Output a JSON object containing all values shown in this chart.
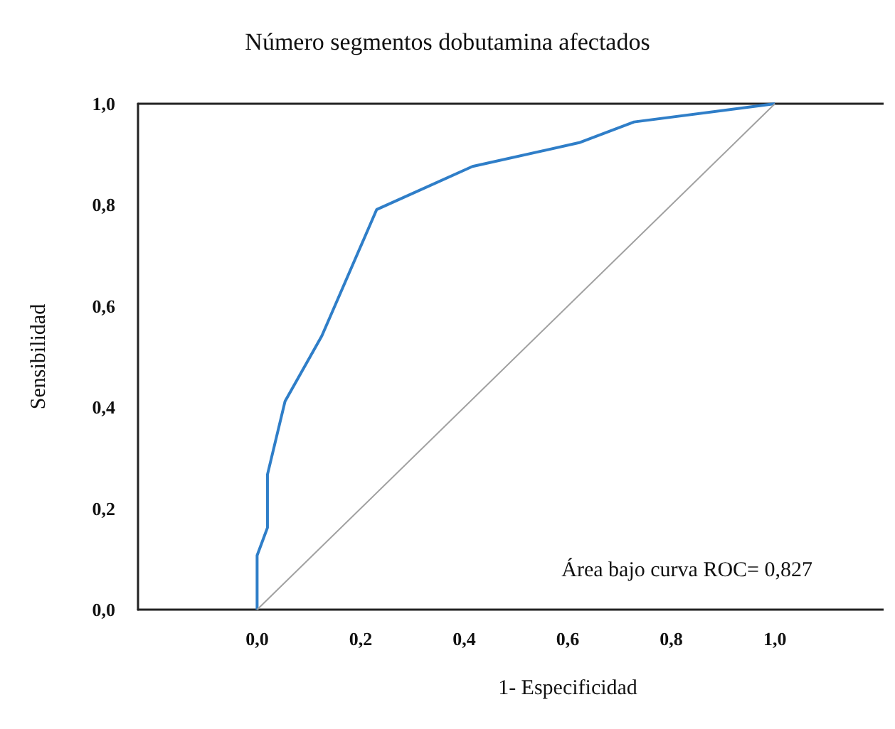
{
  "chart_data": {
    "type": "line",
    "title": "Número segmentos dobutamina afectados",
    "xlabel": "1- Especificidad",
    "ylabel": "Sensibilidad",
    "xlim": [
      -0.23,
      1.21
    ],
    "ylim": [
      0,
      1
    ],
    "xticks": [
      {
        "value": 0,
        "label": "0,0"
      },
      {
        "value": 0.2,
        "label": "0,2"
      },
      {
        "value": 0.4,
        "label": "0,4"
      },
      {
        "value": 0.6,
        "label": "0,6"
      },
      {
        "value": 0.8,
        "label": "0,8"
      },
      {
        "value": 1,
        "label": "1,0"
      }
    ],
    "yticks": [
      {
        "value": 0,
        "label": "0,0"
      },
      {
        "value": 0.2,
        "label": "0,2"
      },
      {
        "value": 0.4,
        "label": "0,4"
      },
      {
        "value": 0.6,
        "label": "0,6"
      },
      {
        "value": 0.8,
        "label": "0,8"
      },
      {
        "value": 1,
        "label": "1,0"
      }
    ],
    "series": [
      {
        "color": "#2f7ec8",
        "x": [
          0,
          0,
          0.02,
          0.02,
          0.054,
          0.125,
          0.231,
          0.416,
          0.622,
          0.728,
          1
        ],
        "values": [
          0,
          0.107,
          0.162,
          0.267,
          0.412,
          0.541,
          0.791,
          0.876,
          0.923,
          0.964,
          1
        ]
      },
      {
        "color": "#a0a0a0",
        "x": [
          0,
          1
        ],
        "values": [
          0,
          1
        ]
      }
    ],
    "annotations": [
      "Área bajo curva ROC= 0,827"
    ],
    "grid": false,
    "marker": "none",
    "line_style": "solid"
  }
}
